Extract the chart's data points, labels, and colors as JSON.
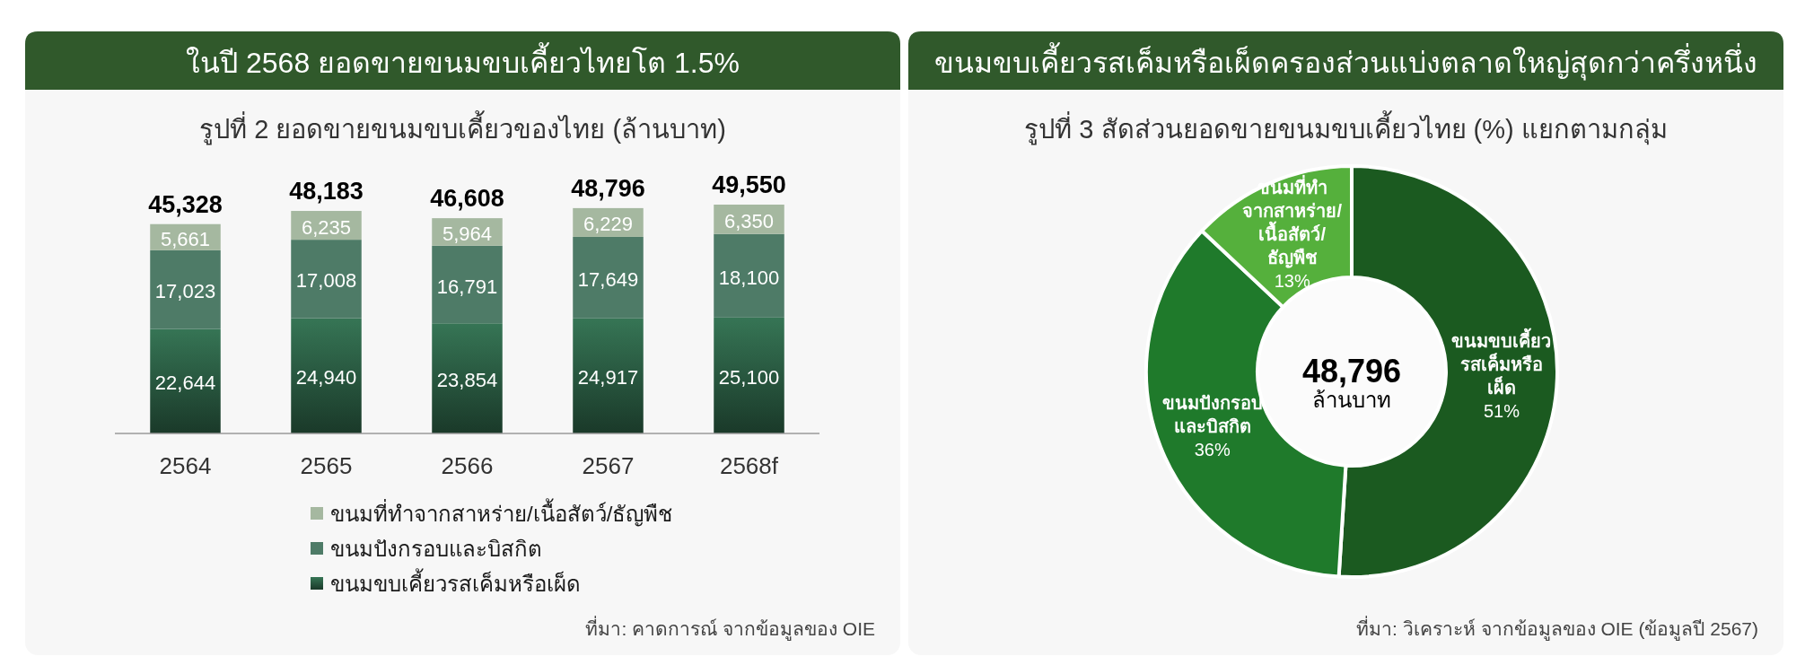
{
  "chart_data": [
    {
      "type": "bar",
      "stacked": true,
      "title": "ในปี 2568 ยอดขายขนมขบเคี้ยวไทยโต 1.5%",
      "subtitle": "รูปที่ 2 ยอดขายขนมขบเคี้ยวของไทย (ล้านบาท)",
      "categories": [
        "2564",
        "2565",
        "2566",
        "2567",
        "2568f"
      ],
      "series": [
        {
          "name": "ขนมขบเคี้ยวรสเค็มหรือเผ็ด",
          "color": "#28573f",
          "values": [
            22644,
            24940,
            23854,
            24917,
            25100
          ],
          "value_labels": [
            "22,644",
            "24,940",
            "23,854",
            "24,917",
            "25,100"
          ]
        },
        {
          "name": "ขนมปังกรอบและบิสกิต",
          "color": "#4e7b67",
          "values": [
            17023,
            17008,
            16791,
            17649,
            18100
          ],
          "value_labels": [
            "17,023",
            "17,008",
            "16,791",
            "17,649",
            "18,100"
          ]
        },
        {
          "name": "ขนมที่ทำจากสาหร่าย/เนื้อสัตว์/ธัญพืช",
          "color": "#a5b8a0",
          "values": [
            5661,
            6235,
            5964,
            6229,
            6350
          ],
          "value_labels": [
            "5,661",
            "6,235",
            "5,964",
            "6,229",
            "6,350"
          ]
        }
      ],
      "totals": [
        "45,328",
        "48,183",
        "46,608",
        "48,796",
        "49,550"
      ],
      "legend": "bottom",
      "annotations": [
        "ที่มา: คาดการณ์ จากข้อมูลของ OIE"
      ]
    },
    {
      "type": "donut",
      "title": "ขนมขบเคี้ยวรสเค็มหรือเผ็ดครองส่วนแบ่งตลาดใหญ่สุดกว่าครึ่งหนึ่ง",
      "subtitle": "รูปที่ 3 สัดส่วนยอดขายขนมขบเคี้ยวไทย (%) แยกตามกลุ่ม",
      "categories": [
        "ขนมขบเคี้ยวรสเค็มหรือเผ็ด",
        "ขนมปังกรอบและบิสกิต",
        "ขนมที่ทำจากสาหร่าย/เนื้อสัตว์/ธัญพืช"
      ],
      "values": [
        51,
        36,
        13
      ],
      "colors": [
        "#1b5a20",
        "#1f7a2b",
        "#55b03c"
      ],
      "value_labels": [
        "51%",
        "36%",
        "13%"
      ],
      "annotations": [
        "48,796",
        "ล้านบาท",
        "ที่มา: วิเคราะห์ จากข้อมูลของ OIE (ข้อมูลปี 2567)"
      ]
    }
  ]
}
